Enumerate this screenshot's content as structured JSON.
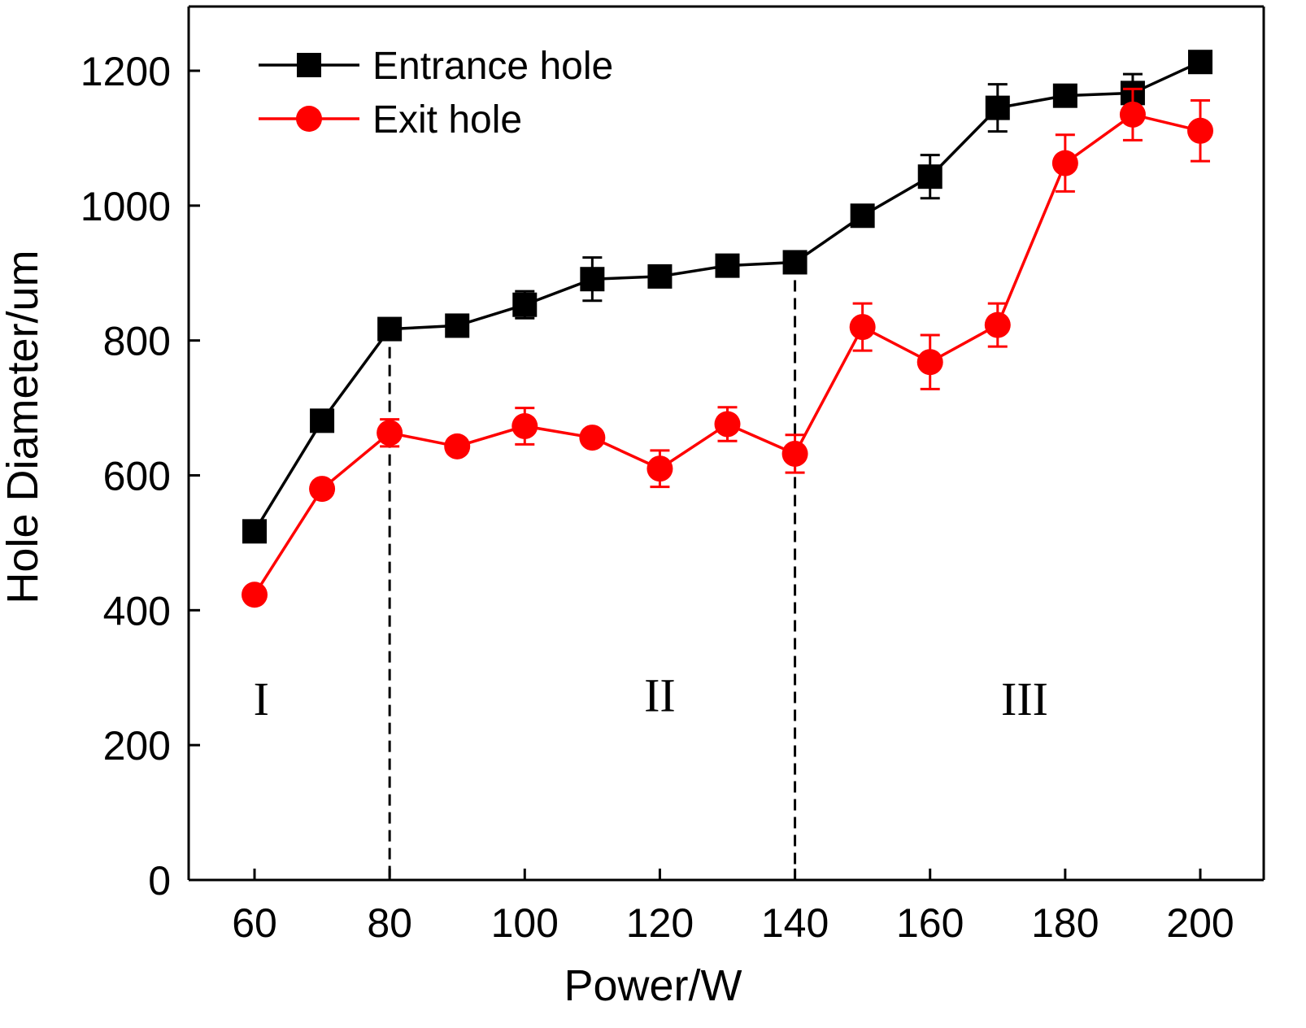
{
  "chart_data": {
    "type": "line",
    "title": "",
    "xlabel": "Power/W",
    "ylabel": "Hole Diameter/um",
    "xlim": [
      50,
      215
    ],
    "ylim": [
      0,
      1300
    ],
    "xticks": [
      60,
      80,
      100,
      120,
      140,
      160,
      180,
      200
    ],
    "yticks": [
      0,
      200,
      400,
      600,
      800,
      1000,
      1200
    ],
    "x": [
      60,
      70,
      80,
      90,
      100,
      110,
      120,
      130,
      140,
      150,
      160,
      170,
      180,
      190,
      200
    ],
    "series": [
      {
        "name": "Entrance hole",
        "color": "#000000",
        "marker": "square",
        "values": [
          517,
          681,
          817,
          822,
          853,
          891,
          895,
          911,
          916,
          985,
          1043,
          1145,
          1163,
          1167,
          1213
        ],
        "errors": [
          0,
          0,
          0,
          0,
          20,
          32,
          0,
          0,
          15,
          0,
          32,
          35,
          0,
          28,
          0
        ]
      },
      {
        "name": "Exit hole",
        "color": "#ff0000",
        "marker": "circle",
        "values": [
          423,
          580,
          663,
          643,
          673,
          656,
          610,
          676,
          632,
          820,
          768,
          823,
          1063,
          1135,
          1111
        ],
        "errors": [
          0,
          0,
          20,
          0,
          27,
          0,
          27,
          25,
          28,
          35,
          40,
          32,
          42,
          38,
          45
        ]
      }
    ],
    "dividers": [
      80,
      140
    ],
    "regions": [
      {
        "label": "I",
        "x": 61,
        "y": 245
      },
      {
        "label": "II",
        "x": 120,
        "y": 250
      },
      {
        "label": "III",
        "x": 174,
        "y": 245
      }
    ],
    "legend_position": "top-left"
  }
}
